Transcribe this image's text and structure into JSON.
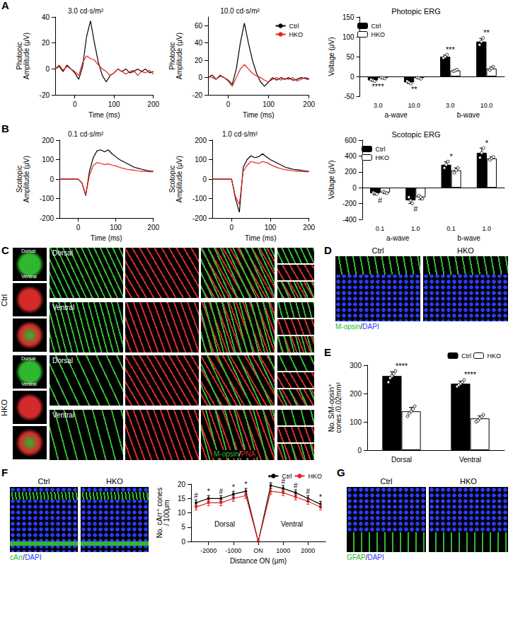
{
  "chart_data": [
    {
      "panel": "A",
      "type": "line",
      "title": "3.0 cd·s/m²",
      "x_label": "Time (ms)",
      "y_label": "Photopic Amplitude (μV)",
      "grid": false,
      "x": [
        -50,
        -40,
        -30,
        -20,
        -10,
        0,
        10,
        20,
        30,
        40,
        50,
        60,
        70,
        80,
        90,
        100,
        110,
        120,
        130,
        140,
        150,
        160,
        170,
        180,
        190,
        200
      ],
      "xlim": [
        -50,
        200
      ],
      "xticks": [
        0,
        100,
        200
      ],
      "ylim": [
        -20,
        40
      ],
      "yticks": [
        -20,
        0,
        20,
        40
      ],
      "series": [
        {
          "name": "Ctrl",
          "color": "#000000",
          "values": [
            0,
            2,
            -2,
            3,
            0,
            -3,
            -8,
            2,
            25,
            37,
            20,
            5,
            -5,
            -10,
            -5,
            -3,
            0,
            -2,
            0,
            -3,
            -2,
            0,
            -2,
            0,
            -3,
            -2
          ]
        },
        {
          "name": "HKO",
          "color": "#e8231f",
          "values": [
            0,
            3,
            -1,
            2,
            0,
            -2,
            -5,
            5,
            10,
            8,
            7,
            3,
            0,
            -2,
            -5,
            -3,
            0,
            -2,
            -4,
            -2,
            -1,
            -5,
            -2,
            -3,
            -1,
            -4
          ]
        }
      ]
    },
    {
      "type": "line",
      "title": "10.0 cd·s/m²",
      "x_label": "Time (ms)",
      "y_label": "Photopic Amplitude (μV)",
      "grid": false,
      "legend": "top-right",
      "x": [
        -50,
        -40,
        -30,
        -20,
        -10,
        0,
        10,
        20,
        30,
        40,
        50,
        60,
        70,
        80,
        90,
        100,
        110,
        120,
        130,
        140,
        150,
        160,
        170,
        180,
        190,
        200
      ],
      "xlim": [
        -50,
        200
      ],
      "xticks": [
        0,
        100,
        200
      ],
      "ylim": [
        -20,
        70
      ],
      "yticks": [
        -20,
        0,
        20,
        40,
        60
      ],
      "series": [
        {
          "name": "Ctrl",
          "color": "#000000",
          "values": [
            0,
            3,
            -2,
            2,
            0,
            -3,
            -8,
            10,
            40,
            63,
            40,
            20,
            5,
            -5,
            -10,
            -5,
            0,
            -3,
            0,
            -2,
            0,
            -3,
            -2,
            0,
            -1,
            -2
          ]
        },
        {
          "name": "HKO",
          "color": "#e8231f",
          "values": [
            2,
            0,
            -2,
            3,
            0,
            -4,
            -10,
            0,
            10,
            15,
            10,
            5,
            2,
            0,
            -3,
            -5,
            -2,
            0,
            -3,
            -1,
            -2,
            0,
            -4,
            -2,
            0,
            -1
          ]
        }
      ]
    },
    {
      "type": "bar",
      "title": "Photopic ERG",
      "y_label": "Voltage (μV)",
      "grid": false,
      "legend": "top-left",
      "groups": [
        "a-wave",
        "b-wave"
      ],
      "categories": [
        "3.0",
        "10.0",
        "3.0",
        "10.0"
      ],
      "ylim": [
        -50,
        150
      ],
      "yticks": [
        -50,
        0,
        50,
        100,
        150
      ],
      "significance": [
        "****",
        "**",
        "***",
        "**"
      ],
      "series": [
        {
          "name": "Ctrl",
          "color": "#000000",
          "values": [
            -10,
            -15,
            50,
            88
          ],
          "errors": [
            2,
            3,
            4,
            8
          ],
          "points": [
            [
              -8,
              -10,
              -12
            ],
            [
              -12,
              -15,
              -18
            ],
            [
              47,
              50,
              55
            ],
            [
              80,
              88,
              97
            ]
          ]
        },
        {
          "name": "HKO",
          "color": "#ffffff",
          "values": [
            -4,
            -4,
            15,
            20
          ],
          "errors": [
            1,
            1,
            2,
            4
          ],
          "points": [
            [
              -3,
              -4,
              -5
            ],
            [
              -3,
              -4,
              -6
            ],
            [
              13,
              15,
              17
            ],
            [
              16,
              20,
              25
            ]
          ]
        }
      ]
    },
    {
      "panel": "B",
      "type": "line",
      "title": "0.1 cd·s/m²",
      "x_label": "Time (ms)",
      "y_label": "Scotopic Amplitude (μV)",
      "grid": false,
      "x": [
        -50,
        -40,
        -30,
        -20,
        -10,
        0,
        10,
        20,
        30,
        40,
        50,
        60,
        70,
        80,
        90,
        100,
        110,
        120,
        130,
        140,
        150,
        160,
        170,
        180,
        190,
        200
      ],
      "xlim": [
        -50,
        200
      ],
      "xticks": [
        0,
        100,
        200
      ],
      "ylim": [
        -200,
        200
      ],
      "yticks": [
        -200,
        -100,
        0,
        100,
        200
      ],
      "series": [
        {
          "name": "Ctrl",
          "color": "#000000",
          "values": [
            0,
            0,
            0,
            0,
            0,
            0,
            -20,
            -85,
            40,
            110,
            145,
            150,
            140,
            150,
            130,
            115,
            100,
            90,
            80,
            70,
            60,
            55,
            50,
            45,
            42,
            40
          ]
        },
        {
          "name": "HKO",
          "color": "#e8231f",
          "values": [
            0,
            0,
            0,
            0,
            0,
            0,
            -20,
            -80,
            20,
            70,
            85,
            80,
            75,
            78,
            72,
            68,
            60,
            55,
            50,
            48,
            45,
            42,
            40,
            40,
            38,
            38
          ]
        }
      ]
    },
    {
      "type": "line",
      "title": "1.0 cd·s/m²",
      "x_label": "Time (ms)",
      "y_label": "Scotopic Amplitude (μV)",
      "grid": false,
      "x": [
        -50,
        -40,
        -30,
        -20,
        -10,
        0,
        10,
        20,
        30,
        40,
        50,
        60,
        70,
        80,
        90,
        100,
        110,
        120,
        130,
        140,
        150,
        160,
        170,
        180,
        190,
        200
      ],
      "xlim": [
        -50,
        200
      ],
      "xticks": [
        0,
        100,
        200
      ],
      "ylim": [
        -200,
        200
      ],
      "yticks": [
        -200,
        -100,
        0,
        100,
        200
      ],
      "series": [
        {
          "name": "Ctrl",
          "color": "#000000",
          "values": [
            0,
            0,
            0,
            0,
            0,
            0,
            -100,
            -170,
            60,
            100,
            120,
            110,
            115,
            130,
            115,
            100,
            90,
            80,
            70,
            60,
            55,
            50,
            48,
            45,
            42,
            40
          ]
        },
        {
          "name": "HKO",
          "color": "#e8231f",
          "values": [
            0,
            0,
            0,
            0,
            0,
            0,
            -90,
            -130,
            40,
            70,
            90,
            85,
            80,
            90,
            85,
            75,
            65,
            58,
            52,
            48,
            45,
            42,
            40,
            40,
            38,
            38
          ]
        }
      ]
    },
    {
      "type": "bar",
      "title": "Scotopic ERG",
      "y_label": "Voltage (μV)",
      "grid": false,
      "legend": "top-left",
      "groups": [
        "a-wave",
        "b-wave"
      ],
      "categories": [
        "0.1",
        "1.0",
        "0.1",
        "1.0"
      ],
      "ylim": [
        -400,
        600
      ],
      "yticks": [
        -400,
        -200,
        0,
        200,
        400,
        600
      ],
      "significance": [
        "#",
        "#",
        "*",
        "*"
      ],
      "series": [
        {
          "name": "Ctrl",
          "color": "#000000",
          "values": [
            -70,
            -160,
            290,
            440
          ],
          "errors": [
            20,
            40,
            40,
            60
          ],
          "points": [
            [
              -60,
              -70,
              -80
            ],
            [
              -120,
              -160,
              -200
            ],
            [
              250,
              290,
              330
            ],
            [
              380,
              440,
              500
            ]
          ]
        },
        {
          "name": "HKO",
          "color": "#ffffff",
          "values": [
            -60,
            -120,
            220,
            370
          ],
          "errors": [
            15,
            30,
            30,
            20
          ],
          "points": [
            [
              -50,
              -60,
              -70
            ],
            [
              -100,
              -120,
              -140
            ],
            [
              190,
              220,
              250
            ],
            [
              350,
              370,
              390
            ]
          ]
        }
      ]
    },
    {
      "panel": "E",
      "type": "bar",
      "y_label": "No. S/M-opsin⁺ cones /0.02mm²",
      "grid": false,
      "legend": "top-right",
      "categories": [
        "Dorsal",
        "Ventral"
      ],
      "ylim": [
        0,
        300
      ],
      "yticks": [
        0,
        100,
        200,
        300
      ],
      "significance": [
        "****",
        "****"
      ],
      "series": [
        {
          "name": "Ctrl",
          "color": "#000000",
          "values": [
            262,
            235
          ],
          "errors": [
            15,
            9
          ],
          "points": [
            [
              240,
              255,
              262,
              270,
              280
            ],
            [
              225,
              230,
              235,
              240,
              248
            ]
          ]
        },
        {
          "name": "HKO",
          "color": "#ffffff",
          "values": [
            137,
            112
          ],
          "errors": [
            14,
            9
          ],
          "points": [
            [
              120,
              130,
              137,
              145,
              155
            ],
            [
              100,
              105,
              112,
              118,
              125
            ]
          ]
        }
      ]
    },
    {
      "type": "line",
      "x_label": "Distance ON (μm)",
      "y_label": "No. cArr⁺ cones / 100μm",
      "grid": false,
      "legend": "top-right",
      "x": [
        -2500,
        -2000,
        -1500,
        -1000,
        -500,
        0,
        500,
        1000,
        1500,
        2000,
        2500
      ],
      "xlim": [
        -2700,
        2700
      ],
      "xticks": [
        -2000,
        -1000,
        {
          "value": 0,
          "label": "ON"
        },
        1000,
        2000
      ],
      "ylim": [
        0,
        20
      ],
      "yticks": [
        0,
        5,
        10,
        15,
        20
      ],
      "annotations": [
        "Dorsal",
        "Ventral"
      ],
      "significance": [
        "#",
        "*",
        "#",
        "*",
        "*",
        null,
        "**",
        "#",
        "#",
        "#",
        "*"
      ],
      "series": [
        {
          "name": "Ctrl",
          "color": "#000000",
          "marker": "circle",
          "values": [
            13.5,
            15,
            15,
            16.5,
            17.5,
            0,
            19.5,
            18.5,
            17,
            15,
            13
          ],
          "errors": [
            1,
            1,
            1,
            1,
            1,
            0,
            1,
            1,
            1,
            1,
            1
          ]
        },
        {
          "name": "HKO",
          "color": "#e8231f",
          "marker": "circle",
          "values": [
            12,
            13.5,
            13.5,
            15,
            16,
            0,
            17.5,
            17,
            15.5,
            14,
            12
          ],
          "errors": [
            1,
            1,
            1,
            1,
            1,
            0,
            1,
            1,
            1,
            1,
            1
          ]
        }
      ]
    }
  ],
  "images": [
    {
      "panel": "C",
      "conditions": [
        "Ctrl",
        "HKO"
      ],
      "regions": [
        "Dorsal",
        "Ventral"
      ],
      "stain": "M-opsin/PNA",
      "colors": [
        "#2fb82f",
        "#d42a2a"
      ]
    },
    {
      "panel": "D",
      "conditions": [
        "Ctrl",
        "HKO"
      ],
      "stain": "M-opsin/DAPI",
      "colors": [
        "#2fb82f",
        "#2a3cff"
      ]
    },
    {
      "panel": "F",
      "conditions": [
        "Ctrl",
        "HKO"
      ],
      "stain": "cArr/DAPI",
      "colors": [
        "#2fb82f",
        "#2a3cff"
      ]
    },
    {
      "panel": "G",
      "conditions": [
        "Ctrl",
        "HKO"
      ],
      "stain": "GFAP/DAPI",
      "colors": [
        "#2fb82f",
        "#2a3cff"
      ]
    }
  ]
}
